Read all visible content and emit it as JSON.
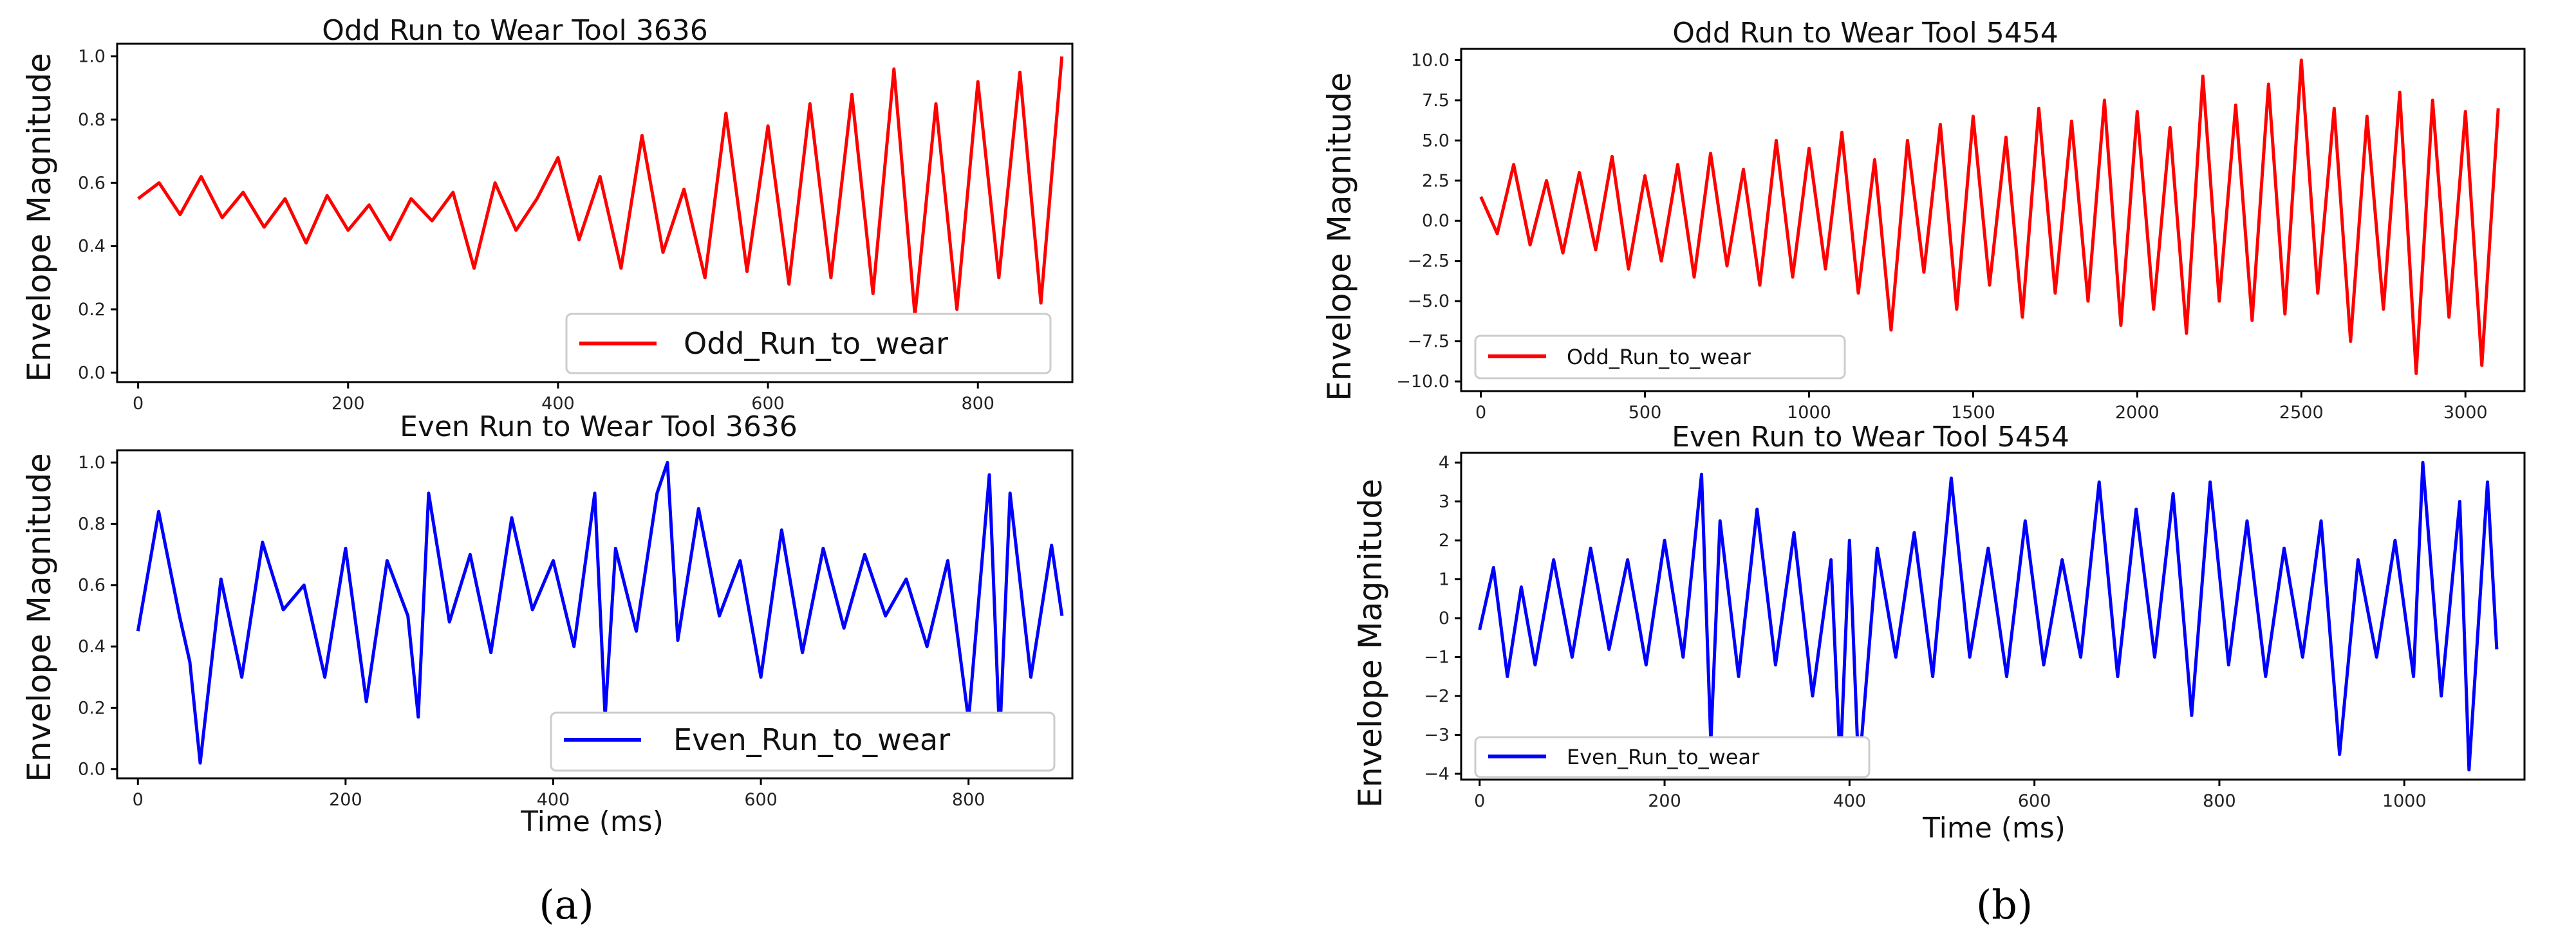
{
  "chart_data": [
    {
      "id": "a-top",
      "type": "line",
      "title": "Odd Run to Wear Tool 3636",
      "xlabel": "",
      "ylabel": "Envelope Magnitude",
      "xlim": [
        -20,
        890
      ],
      "ylim": [
        -0.03,
        1.04
      ],
      "xticks": [
        0,
        200,
        400,
        600,
        800
      ],
      "yticks": [
        0.0,
        0.2,
        0.4,
        0.6,
        0.8,
        1.0
      ],
      "ytick_labels": [
        "0.0",
        "0.2",
        "0.4",
        "0.6",
        "0.8",
        "1.0"
      ],
      "legend": "lower right",
      "series": [
        {
          "name": "Odd_Run_to_wear",
          "color": "#ff0000",
          "x": [
            0,
            20,
            40,
            60,
            80,
            100,
            120,
            140,
            160,
            180,
            200,
            220,
            240,
            260,
            280,
            300,
            320,
            340,
            360,
            380,
            400,
            420,
            440,
            460,
            480,
            500,
            520,
            540,
            560,
            580,
            600,
            620,
            640,
            660,
            680,
            700,
            720,
            740,
            760,
            780,
            800,
            820,
            840,
            860,
            880
          ],
          "y": [
            0.55,
            0.6,
            0.5,
            0.62,
            0.49,
            0.57,
            0.46,
            0.55,
            0.41,
            0.56,
            0.45,
            0.53,
            0.42,
            0.55,
            0.48,
            0.57,
            0.33,
            0.6,
            0.45,
            0.55,
            0.68,
            0.42,
            0.62,
            0.33,
            0.75,
            0.38,
            0.58,
            0.3,
            0.82,
            0.32,
            0.78,
            0.28,
            0.85,
            0.3,
            0.88,
            0.25,
            0.96,
            0.18,
            0.85,
            0.2,
            0.92,
            0.3,
            0.95,
            0.22,
            1.0
          ]
        }
      ]
    },
    {
      "id": "a-bottom",
      "type": "line",
      "title": "Even Run to Wear Tool 3636",
      "xlabel": "Time (ms)",
      "ylabel": "Envelope Magnitude",
      "xlim": [
        -20,
        900
      ],
      "ylim": [
        -0.03,
        1.04
      ],
      "xticks": [
        0,
        200,
        400,
        600,
        800
      ],
      "yticks": [
        0.0,
        0.2,
        0.4,
        0.6,
        0.8,
        1.0
      ],
      "ytick_labels": [
        "0.0",
        "0.2",
        "0.4",
        "0.6",
        "0.8",
        "1.0"
      ],
      "legend": "lower right",
      "series": [
        {
          "name": "Even_Run_to_wear",
          "color": "#0000ff",
          "x": [
            0,
            20,
            40,
            50,
            60,
            80,
            100,
            120,
            140,
            160,
            180,
            200,
            220,
            240,
            260,
            270,
            280,
            300,
            320,
            340,
            360,
            380,
            400,
            420,
            440,
            450,
            460,
            480,
            500,
            510,
            520,
            540,
            560,
            580,
            600,
            620,
            640,
            660,
            680,
            700,
            720,
            740,
            760,
            780,
            800,
            820,
            830,
            840,
            860,
            880,
            890
          ],
          "y": [
            0.45,
            0.84,
            0.5,
            0.35,
            0.02,
            0.62,
            0.3,
            0.74,
            0.52,
            0.6,
            0.3,
            0.72,
            0.22,
            0.68,
            0.5,
            0.17,
            0.9,
            0.48,
            0.7,
            0.38,
            0.82,
            0.52,
            0.68,
            0.4,
            0.9,
            0.17,
            0.72,
            0.45,
            0.9,
            1.0,
            0.42,
            0.85,
            0.5,
            0.68,
            0.3,
            0.78,
            0.38,
            0.72,
            0.46,
            0.7,
            0.5,
            0.62,
            0.4,
            0.68,
            0.16,
            0.96,
            0.1,
            0.9,
            0.3,
            0.73,
            0.5
          ]
        }
      ]
    },
    {
      "id": "b-top",
      "type": "line",
      "title": "Odd Run to Wear Tool 5454",
      "xlabel": "",
      "ylabel": "Envelope Magnitude",
      "xlim": [
        -60,
        3180
      ],
      "ylim": [
        -10.6,
        10.7
      ],
      "xticks": [
        0,
        500,
        1000,
        1500,
        2000,
        2500,
        3000
      ],
      "yticks": [
        -10.0,
        -7.5,
        -5.0,
        -2.5,
        0.0,
        2.5,
        5.0,
        7.5,
        10.0
      ],
      "ytick_labels": [
        "−10.0",
        "−7.5",
        "−5.0",
        "−2.5",
        "0.0",
        "2.5",
        "5.0",
        "7.5",
        "10.0"
      ],
      "legend": "lower left",
      "series": [
        {
          "name": "Odd_Run_to_wear",
          "color": "#ff0000",
          "x": [
            0,
            50,
            100,
            150,
            200,
            250,
            300,
            350,
            400,
            450,
            500,
            550,
            600,
            650,
            700,
            750,
            800,
            850,
            900,
            950,
            1000,
            1050,
            1100,
            1150,
            1200,
            1250,
            1300,
            1350,
            1400,
            1450,
            1500,
            1550,
            1600,
            1650,
            1700,
            1750,
            1800,
            1850,
            1900,
            1950,
            2000,
            2050,
            2100,
            2150,
            2200,
            2250,
            2300,
            2350,
            2400,
            2450,
            2500,
            2550,
            2600,
            2650,
            2700,
            2750,
            2800,
            2850,
            2900,
            2950,
            3000,
            3050,
            3100
          ],
          "y": [
            1.5,
            -0.8,
            3.5,
            -1.5,
            2.5,
            -2.0,
            3.0,
            -1.8,
            4.0,
            -3.0,
            2.8,
            -2.5,
            3.5,
            -3.5,
            4.2,
            -2.8,
            3.2,
            -4.0,
            5.0,
            -3.5,
            4.5,
            -3.0,
            5.5,
            -4.5,
            3.8,
            -6.8,
            5.0,
            -3.2,
            6.0,
            -5.5,
            6.5,
            -4.0,
            5.2,
            -6.0,
            7.0,
            -4.5,
            6.2,
            -5.0,
            7.5,
            -6.5,
            6.8,
            -5.5,
            5.8,
            -7.0,
            9.0,
            -5.0,
            7.2,
            -6.2,
            8.5,
            -5.8,
            10.0,
            -4.5,
            7.0,
            -7.5,
            6.5,
            -5.5,
            8.0,
            -9.5,
            7.5,
            -6.0,
            6.8,
            -9.0,
            7.0
          ]
        }
      ]
    },
    {
      "id": "b-bottom",
      "type": "line",
      "title": "Even Run to Wear Tool 5454",
      "xlabel": "Time (ms)",
      "ylabel": "Envelope Magnitude",
      "xlim": [
        -20,
        1130
      ],
      "ylim": [
        -4.15,
        4.25
      ],
      "xticks": [
        0,
        200,
        400,
        600,
        800,
        1000
      ],
      "yticks": [
        -4,
        -3,
        -2,
        -1,
        0,
        1,
        2,
        3,
        4
      ],
      "ytick_labels": [
        "−4",
        "−3",
        "−2",
        "−1",
        "0",
        "1",
        "2",
        "3",
        "4"
      ],
      "legend": "lower left",
      "series": [
        {
          "name": "Even_Run_to_wear",
          "color": "#0000ff",
          "x": [
            0,
            15,
            30,
            45,
            60,
            80,
            100,
            120,
            140,
            160,
            180,
            200,
            220,
            240,
            250,
            260,
            280,
            300,
            320,
            340,
            360,
            380,
            390,
            400,
            410,
            430,
            450,
            470,
            490,
            510,
            530,
            550,
            570,
            590,
            610,
            630,
            650,
            670,
            690,
            710,
            730,
            750,
            770,
            790,
            810,
            830,
            850,
            870,
            890,
            910,
            930,
            950,
            970,
            990,
            1010,
            1020,
            1040,
            1060,
            1070,
            1090,
            1100
          ],
          "y": [
            -0.3,
            1.3,
            -1.5,
            0.8,
            -1.2,
            1.5,
            -1.0,
            1.8,
            -0.8,
            1.5,
            -1.2,
            2.0,
            -1.0,
            3.7,
            -3.2,
            2.5,
            -1.5,
            2.8,
            -1.2,
            2.2,
            -2.0,
            1.5,
            -3.8,
            2.0,
            -4.0,
            1.8,
            -1.0,
            2.2,
            -1.5,
            3.6,
            -1.0,
            1.8,
            -1.5,
            2.5,
            -1.2,
            1.5,
            -1.0,
            3.5,
            -1.5,
            2.8,
            -1.0,
            3.2,
            -2.5,
            3.5,
            -1.2,
            2.5,
            -1.5,
            1.8,
            -1.0,
            2.5,
            -3.5,
            1.5,
            -1.0,
            2.0,
            -1.5,
            4.0,
            -2.0,
            3.0,
            -3.9,
            3.5,
            -0.8
          ]
        }
      ]
    }
  ],
  "captions": {
    "a": "(a)",
    "b": "(b)"
  }
}
